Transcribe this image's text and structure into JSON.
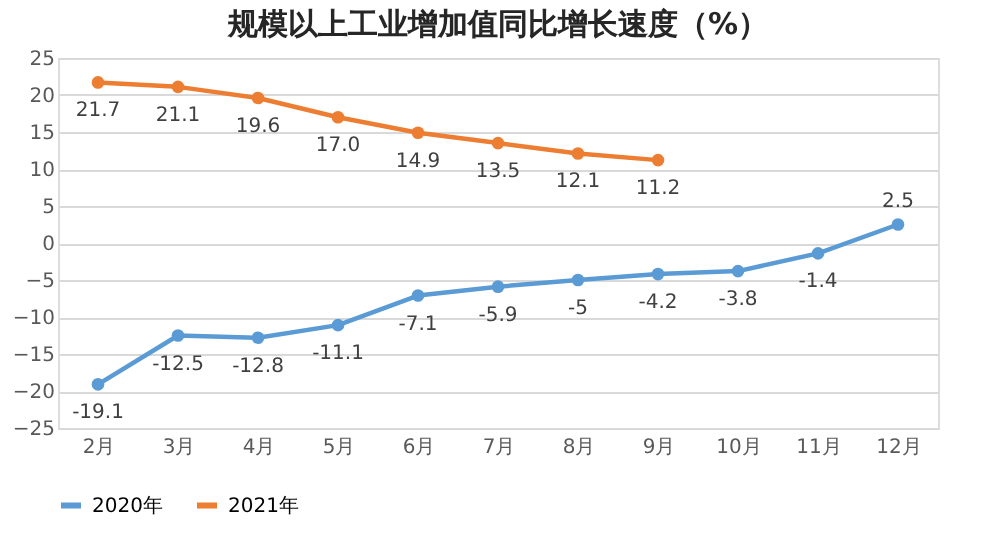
{
  "chart_data": {
    "type": "line",
    "title": "规模以上工业增加值同比增长速度（%）",
    "categories": [
      "2月",
      "3月",
      "4月",
      "5月",
      "6月",
      "7月",
      "8月",
      "9月",
      "10月",
      "11月",
      "12月"
    ],
    "series": [
      {
        "name": "2020年",
        "color": "#5b9bd5",
        "values": [
          -19.1,
          -12.5,
          -12.8,
          -11.1,
          -7.1,
          -5.9,
          -5,
          -4.2,
          -3.8,
          -1.4,
          2.5
        ],
        "value_labels": [
          "-19.1",
          "-12.5",
          "-12.8",
          "-11.1",
          "-7.1",
          "-5.9",
          "-5",
          "-4.2",
          "-3.8",
          "-1.4",
          "2.5"
        ]
      },
      {
        "name": "2021年",
        "color": "#ed7d31",
        "values": [
          21.7,
          21.1,
          19.6,
          17.0,
          14.9,
          13.5,
          12.1,
          11.2,
          null,
          null,
          null
        ],
        "value_labels": [
          "21.7",
          "21.1",
          "19.6",
          "17.0",
          "14.9",
          "13.5",
          "12.1",
          "11.2",
          null,
          null,
          null
        ]
      }
    ],
    "ylim": [
      -25,
      25
    ],
    "yticks": [
      -25,
      -20,
      -15,
      -10,
      -5,
      0,
      5,
      10,
      15,
      20,
      25
    ],
    "grid": "y",
    "legend": "bottom",
    "marker": "circle",
    "line_style": "solid"
  }
}
